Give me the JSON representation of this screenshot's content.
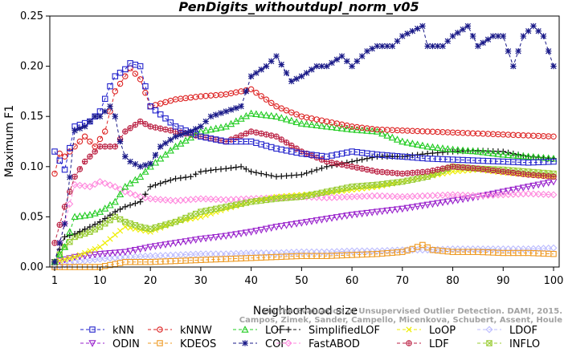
{
  "chart_data": {
    "type": "line",
    "title": "PenDigits_withoutdupl_norm_v05",
    "xlabel": "Neighborhood size",
    "ylabel": "Maximum F1",
    "xlim": [
      1,
      100
    ],
    "ylim": [
      0,
      0.25
    ],
    "xticks": [
      1,
      10,
      20,
      30,
      40,
      50,
      60,
      70,
      80,
      90,
      100
    ],
    "yticks": [
      0.0,
      0.05,
      0.1,
      0.15,
      0.2,
      0.25
    ],
    "ytick_labels": [
      "0.00",
      "0.05",
      "0.10",
      "0.15",
      "0.20",
      "0.25"
    ],
    "grid": false,
    "legend_position": "bottom",
    "watermark": [
      "Campos, Zimek, Sander, Campello, Micenkova, Schubert, Assent, Houle",
      "On the Evaluation of Unsupervised Outlier Detection. DAMI, 2015."
    ],
    "series": [
      {
        "name": "kNN",
        "color": "#2222cc",
        "marker": "square",
        "x": [
          1,
          3,
          5,
          8,
          10,
          12,
          13,
          15,
          16,
          18,
          20,
          25,
          30,
          35,
          40,
          45,
          50,
          55,
          60,
          65,
          70,
          75,
          80,
          85,
          90,
          95,
          100
        ],
        "y": [
          0.115,
          0.097,
          0.14,
          0.145,
          0.155,
          0.18,
          0.19,
          0.197,
          0.203,
          0.2,
          0.16,
          0.14,
          0.13,
          0.125,
          0.125,
          0.118,
          0.113,
          0.11,
          0.115,
          0.112,
          0.11,
          0.108,
          0.107,
          0.106,
          0.105,
          0.104,
          0.105
        ]
      },
      {
        "name": "kNNW",
        "color": "#dd2222",
        "marker": "circle",
        "x": [
          1,
          2,
          3,
          5,
          7,
          9,
          11,
          13,
          15,
          16,
          18,
          20,
          25,
          30,
          35,
          40,
          45,
          50,
          55,
          60,
          65,
          70,
          75,
          80,
          85,
          90,
          95,
          100
        ],
        "y": [
          0.093,
          0.113,
          0.11,
          0.12,
          0.13,
          0.12,
          0.135,
          0.175,
          0.19,
          0.198,
          0.187,
          0.16,
          0.167,
          0.17,
          0.172,
          0.177,
          0.16,
          0.15,
          0.145,
          0.14,
          0.137,
          0.136,
          0.135,
          0.134,
          0.133,
          0.132,
          0.131,
          0.13
        ]
      },
      {
        "name": "LOF",
        "color": "#22cc22",
        "marker": "triangle",
        "x": [
          1,
          3,
          5,
          8,
          10,
          13,
          15,
          18,
          20,
          25,
          30,
          35,
          40,
          45,
          50,
          55,
          60,
          65,
          70,
          75,
          80,
          85,
          90,
          95,
          100
        ],
        "y": [
          0.005,
          0.02,
          0.05,
          0.052,
          0.055,
          0.065,
          0.08,
          0.09,
          0.1,
          0.12,
          0.135,
          0.14,
          0.153,
          0.15,
          0.143,
          0.14,
          0.137,
          0.135,
          0.125,
          0.12,
          0.117,
          0.115,
          0.112,
          0.11,
          0.108
        ]
      },
      {
        "name": "COF",
        "color": "#1a1a88",
        "marker": "asterisk",
        "x": [
          1,
          3,
          5,
          7,
          9,
          10,
          12,
          13,
          14,
          15,
          16,
          18,
          20,
          22,
          25,
          28,
          30,
          32,
          35,
          38,
          40,
          43,
          45,
          48,
          50,
          53,
          55,
          58,
          60,
          63,
          65,
          68,
          70,
          72,
          74,
          75,
          78,
          80,
          83,
          85,
          88,
          90,
          92,
          94,
          96,
          98,
          100
        ],
        "y": [
          0.005,
          0.043,
          0.136,
          0.14,
          0.15,
          0.15,
          0.16,
          0.15,
          0.125,
          0.11,
          0.105,
          0.1,
          0.103,
          0.12,
          0.13,
          0.135,
          0.14,
          0.15,
          0.155,
          0.16,
          0.19,
          0.2,
          0.21,
          0.185,
          0.19,
          0.2,
          0.2,
          0.21,
          0.2,
          0.215,
          0.22,
          0.22,
          0.23,
          0.235,
          0.24,
          0.22,
          0.22,
          0.23,
          0.24,
          0.22,
          0.23,
          0.23,
          0.2,
          0.23,
          0.24,
          0.23,
          0.2
        ]
      },
      {
        "name": "SimplifiedLOF",
        "color": "#111111",
        "marker": "plus",
        "x": [
          1,
          3,
          5,
          8,
          10,
          13,
          15,
          18,
          20,
          23,
          25,
          28,
          30,
          33,
          35,
          38,
          40,
          45,
          50,
          55,
          60,
          65,
          70,
          75,
          80,
          85,
          90,
          95,
          100
        ],
        "y": [
          0.005,
          0.03,
          0.033,
          0.04,
          0.045,
          0.055,
          0.06,
          0.065,
          0.08,
          0.085,
          0.088,
          0.09,
          0.095,
          0.097,
          0.098,
          0.1,
          0.095,
          0.09,
          0.092,
          0.1,
          0.105,
          0.11,
          0.11,
          0.113,
          0.115,
          0.116,
          0.115,
          0.11,
          0.108
        ]
      },
      {
        "name": "FastABOD",
        "color": "#ff88dd",
        "marker": "diamond",
        "x": [
          1,
          5,
          8,
          10,
          13,
          15,
          18,
          20,
          25,
          30,
          35,
          40,
          45,
          50,
          55,
          60,
          65,
          70,
          75,
          80,
          85,
          90,
          95,
          100
        ],
        "y": [
          0.005,
          0.082,
          0.08,
          0.085,
          0.08,
          0.075,
          0.07,
          0.068,
          0.066,
          0.068,
          0.067,
          0.068,
          0.069,
          0.07,
          0.069,
          0.07,
          0.071,
          0.07,
          0.071,
          0.072,
          0.071,
          0.072,
          0.073,
          0.072
        ]
      },
      {
        "name": "ODIN",
        "color": "#9922cc",
        "marker": "triangle-down",
        "x": [
          1,
          5,
          10,
          15,
          20,
          25,
          30,
          35,
          40,
          45,
          50,
          55,
          60,
          65,
          70,
          75,
          80,
          85,
          90,
          95,
          100
        ],
        "y": [
          0.005,
          0.01,
          0.013,
          0.015,
          0.02,
          0.024,
          0.028,
          0.031,
          0.035,
          0.04,
          0.044,
          0.048,
          0.052,
          0.055,
          0.058,
          0.062,
          0.066,
          0.07,
          0.075,
          0.08,
          0.085
        ]
      },
      {
        "name": "KDEOS",
        "color": "#ee9922",
        "marker": "square",
        "x": [
          1,
          10,
          15,
          20,
          25,
          30,
          35,
          40,
          45,
          50,
          55,
          60,
          65,
          70,
          72,
          74,
          76,
          78,
          80,
          85,
          90,
          95,
          100
        ],
        "y": [
          0.0,
          0.0,
          0.005,
          0.005,
          0.006,
          0.007,
          0.008,
          0.009,
          0.01,
          0.011,
          0.011,
          0.012,
          0.013,
          0.015,
          0.018,
          0.022,
          0.017,
          0.016,
          0.015,
          0.015,
          0.014,
          0.014,
          0.013
        ]
      },
      {
        "name": "LoOP",
        "color": "#eeee00",
        "marker": "cross",
        "x": [
          1,
          5,
          10,
          15,
          20,
          25,
          30,
          35,
          40,
          45,
          50,
          55,
          60,
          65,
          70,
          75,
          80,
          85,
          90,
          95,
          100
        ],
        "y": [
          0.005,
          0.01,
          0.02,
          0.04,
          0.035,
          0.045,
          0.05,
          0.058,
          0.065,
          0.07,
          0.072,
          0.074,
          0.077,
          0.08,
          0.085,
          0.09,
          0.095,
          0.097,
          0.094,
          0.092,
          0.09
        ]
      },
      {
        "name": "LDF",
        "color": "#bb2244",
        "marker": "circle-plus",
        "x": [
          1,
          3,
          5,
          7,
          9,
          10,
          12,
          13,
          15,
          18,
          20,
          25,
          30,
          35,
          40,
          45,
          50,
          55,
          60,
          65,
          70,
          75,
          80,
          85,
          90,
          95,
          100
        ],
        "y": [
          0.024,
          0.06,
          0.09,
          0.105,
          0.115,
          0.12,
          0.12,
          0.12,
          0.135,
          0.145,
          0.14,
          0.135,
          0.13,
          0.125,
          0.135,
          0.13,
          0.115,
          0.105,
          0.1,
          0.095,
          0.093,
          0.095,
          0.1,
          0.098,
          0.095,
          0.092,
          0.09
        ]
      },
      {
        "name": "LDOF",
        "color": "#bbbbff",
        "marker": "diamond",
        "x": [
          1,
          5,
          10,
          15,
          20,
          25,
          30,
          35,
          40,
          45,
          50,
          55,
          60,
          65,
          70,
          75,
          80,
          85,
          90,
          95,
          100
        ],
        "y": [
          0.0,
          0.005,
          0.008,
          0.01,
          0.011,
          0.012,
          0.013,
          0.013,
          0.014,
          0.014,
          0.015,
          0.015,
          0.016,
          0.016,
          0.017,
          0.017,
          0.018,
          0.018,
          0.018,
          0.018,
          0.019
        ]
      },
      {
        "name": "INFLO",
        "color": "#99cc33",
        "marker": "square-x",
        "x": [
          1,
          3,
          5,
          8,
          10,
          13,
          15,
          18,
          20,
          25,
          30,
          35,
          40,
          45,
          50,
          55,
          60,
          65,
          70,
          75,
          80,
          85,
          90,
          95,
          100
        ],
        "y": [
          0.005,
          0.02,
          0.03,
          0.035,
          0.04,
          0.05,
          0.045,
          0.04,
          0.038,
          0.045,
          0.055,
          0.06,
          0.065,
          0.068,
          0.07,
          0.075,
          0.08,
          0.082,
          0.085,
          0.09,
          0.1,
          0.098,
          0.097,
          0.095,
          0.093
        ]
      }
    ],
    "legend_order": [
      "kNN",
      "kNNW",
      "LOF",
      "SimplifiedLOF",
      "LoOP",
      "LDOF",
      "ODIN",
      "KDEOS",
      "COF",
      "FastABOD",
      "LDF",
      "INFLO"
    ]
  }
}
